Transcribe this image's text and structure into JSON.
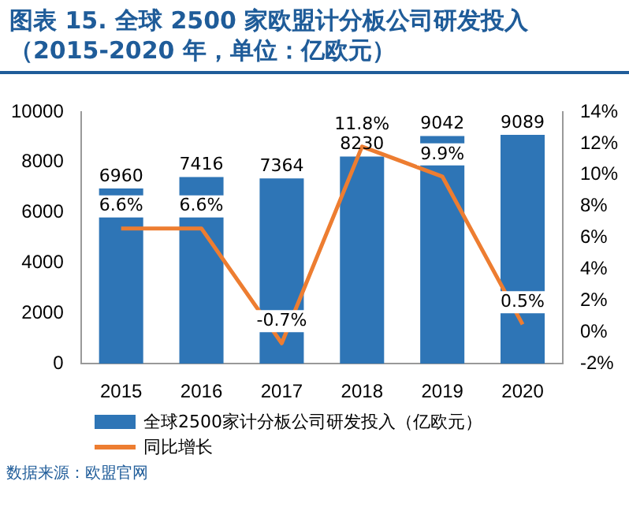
{
  "chart_data": {
    "type": "bar",
    "title": "图表 15. 全球 2500 家欧盟计分板公司研发投入（2015-2020 年，单位：亿欧元）",
    "categories": [
      "2015",
      "2016",
      "2017",
      "2018",
      "2019",
      "2020"
    ],
    "series": [
      {
        "name": "全球2500家计分板公司研发投入（亿欧元）",
        "color": "#2e75b6",
        "values": [
          6960,
          7416,
          7364,
          8230,
          9042,
          9089
        ]
      },
      {
        "name": "同比增长",
        "type": "line",
        "axis": "y2",
        "color": "#ed7d31",
        "values": [
          6.6,
          6.6,
          -0.7,
          11.8,
          9.9,
          0.5
        ],
        "value_labels": [
          "6.6%",
          "6.6%",
          "-0.7%",
          "11.8%",
          "9.9%",
          "0.5%"
        ]
      }
    ],
    "ylim": [
      0,
      10000
    ],
    "yticks": [
      0,
      2000,
      4000,
      6000,
      8000,
      10000
    ],
    "y2lim": [
      -2,
      14
    ],
    "y2ticks": [
      {
        "value": -2,
        "label": "-2%"
      },
      {
        "value": 0,
        "label": "0%"
      },
      {
        "value": 2,
        "label": "2%"
      },
      {
        "value": 4,
        "label": "4%"
      },
      {
        "value": 6,
        "label": "6%"
      },
      {
        "value": 8,
        "label": "8%"
      },
      {
        "value": 10,
        "label": "10%"
      },
      {
        "value": 12,
        "label": "12%"
      },
      {
        "value": 14,
        "label": "14%"
      }
    ],
    "data_labels": true,
    "grid": false,
    "legend": "bottom",
    "marker": "none",
    "line_style": "solid",
    "annotations": [
      "数据来源：欧盟官网"
    ]
  }
}
